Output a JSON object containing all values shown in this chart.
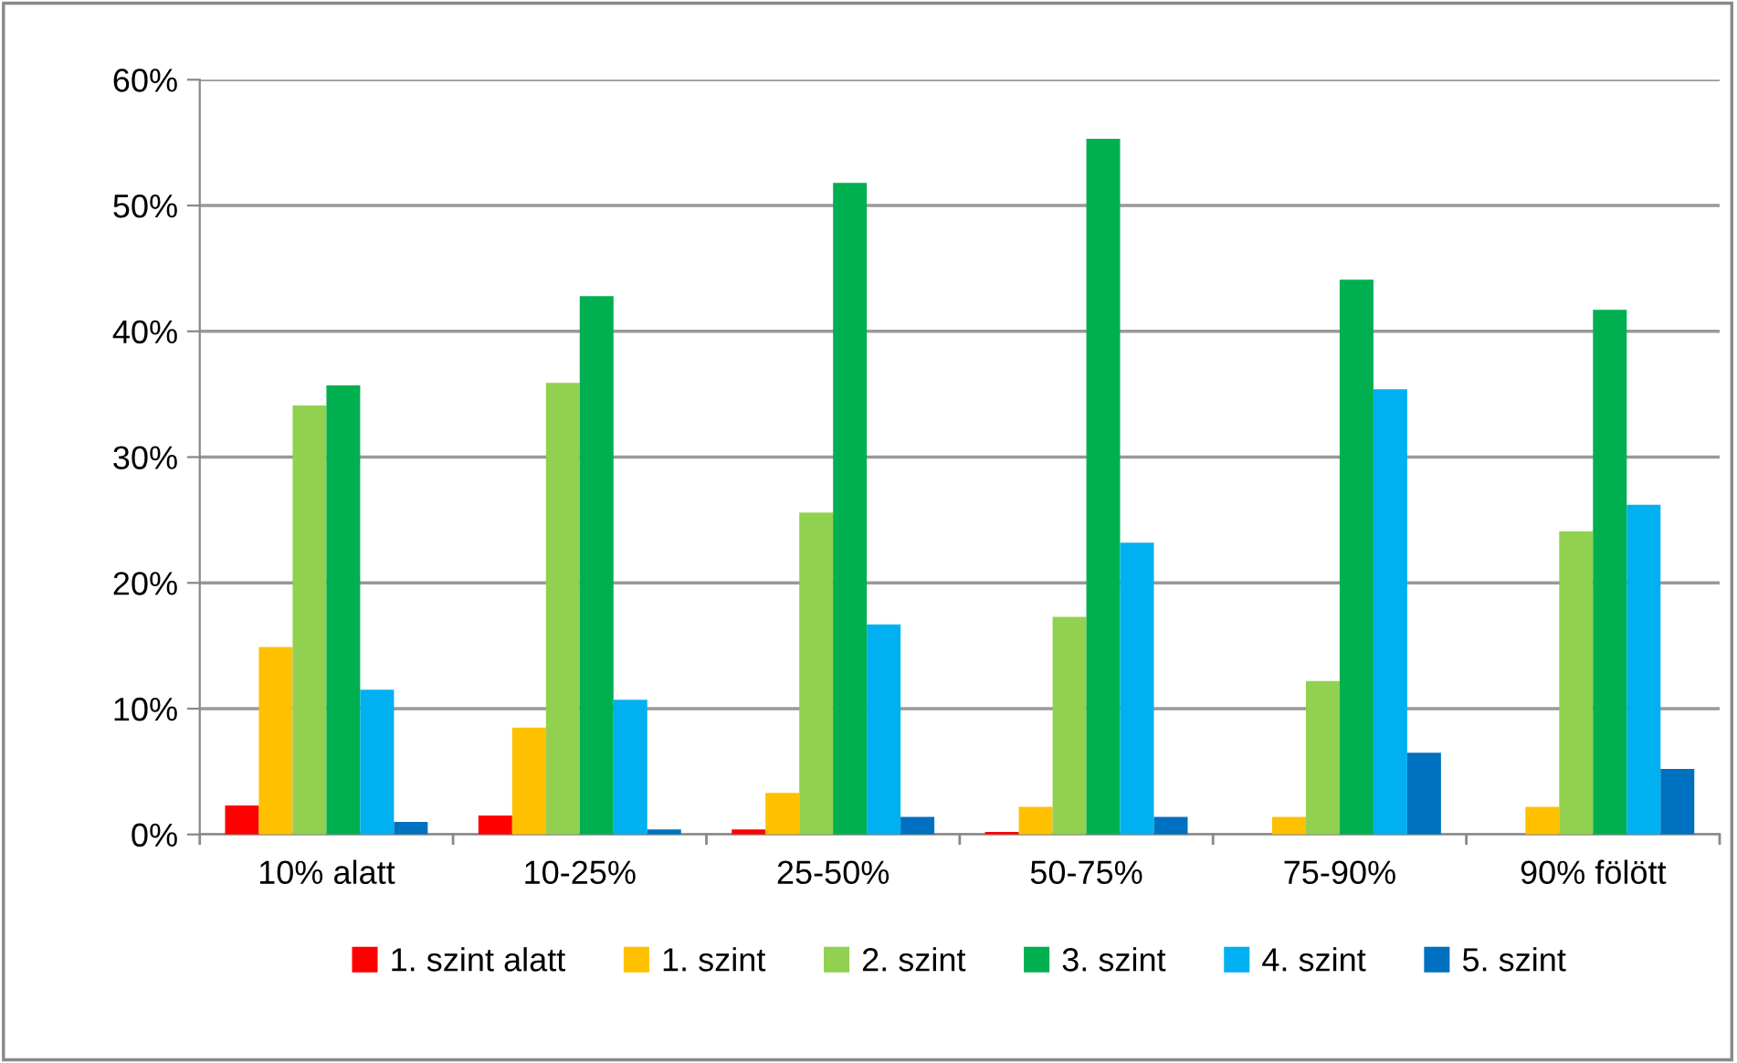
{
  "chart_data": {
    "type": "bar",
    "categories": [
      "10% alatt",
      "10-25%",
      "25-50%",
      "50-75%",
      "75-90%",
      "90% fölött"
    ],
    "series": [
      {
        "name": "1. szint alatt",
        "color": "#ff0000",
        "values": [
          2.3,
          1.5,
          0.4,
          0.2,
          0,
          0
        ]
      },
      {
        "name": "1. szint",
        "color": "#ffc000",
        "values": [
          14.9,
          8.5,
          3.3,
          2.2,
          1.4,
          2.2
        ]
      },
      {
        "name": "2. szint",
        "color": "#92d050",
        "values": [
          34.1,
          35.9,
          25.6,
          17.3,
          12.2,
          24.1
        ]
      },
      {
        "name": "3. szint",
        "color": "#00b050",
        "values": [
          35.7,
          42.8,
          51.8,
          55.3,
          44.1,
          41.7
        ]
      },
      {
        "name": "4. szint",
        "color": "#00b0f0",
        "values": [
          11.5,
          10.7,
          16.7,
          23.2,
          35.4,
          26.2
        ]
      },
      {
        "name": "5. szint",
        "color": "#0070c0",
        "values": [
          1.0,
          0.4,
          1.4,
          1.4,
          6.5,
          5.2
        ]
      }
    ],
    "ylim": [
      0,
      60
    ],
    "yticks": [
      {
        "value": 0,
        "label": "0%"
      },
      {
        "value": 10,
        "label": "10%"
      },
      {
        "value": 20,
        "label": "20%"
      },
      {
        "value": 30,
        "label": "30%"
      },
      {
        "value": 40,
        "label": "40%"
      },
      {
        "value": 50,
        "label": "50%"
      },
      {
        "value": 60,
        "label": "60%"
      }
    ],
    "grid": "y",
    "legend": "bottom"
  }
}
